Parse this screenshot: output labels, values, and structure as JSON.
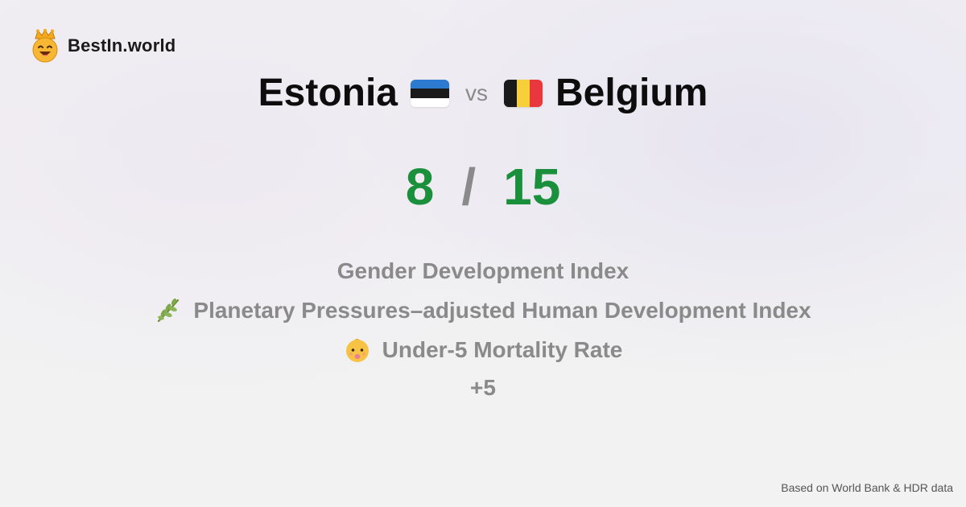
{
  "brand": {
    "name": "BestIn.world",
    "icon": "crowned-smiley-icon"
  },
  "comparison": {
    "left_country": "Estonia",
    "left_flag": "estonia-flag-icon",
    "vs_label": "vs",
    "right_country": "Belgium",
    "right_flag": "belgium-flag-icon"
  },
  "score": {
    "left": "8",
    "separator": "/",
    "right": "15",
    "color": "#1a8f3c"
  },
  "indicators": [
    {
      "label": "Gender Development Index",
      "icon": ""
    },
    {
      "label": "Planetary Pressures–adjusted Human Development Index",
      "icon": "herb-icon"
    },
    {
      "label": "Under-5 Mortality Rate",
      "icon": "baby-icon"
    }
  ],
  "more_label": "+5",
  "footer": {
    "source": "Based on World Bank & HDR data"
  }
}
